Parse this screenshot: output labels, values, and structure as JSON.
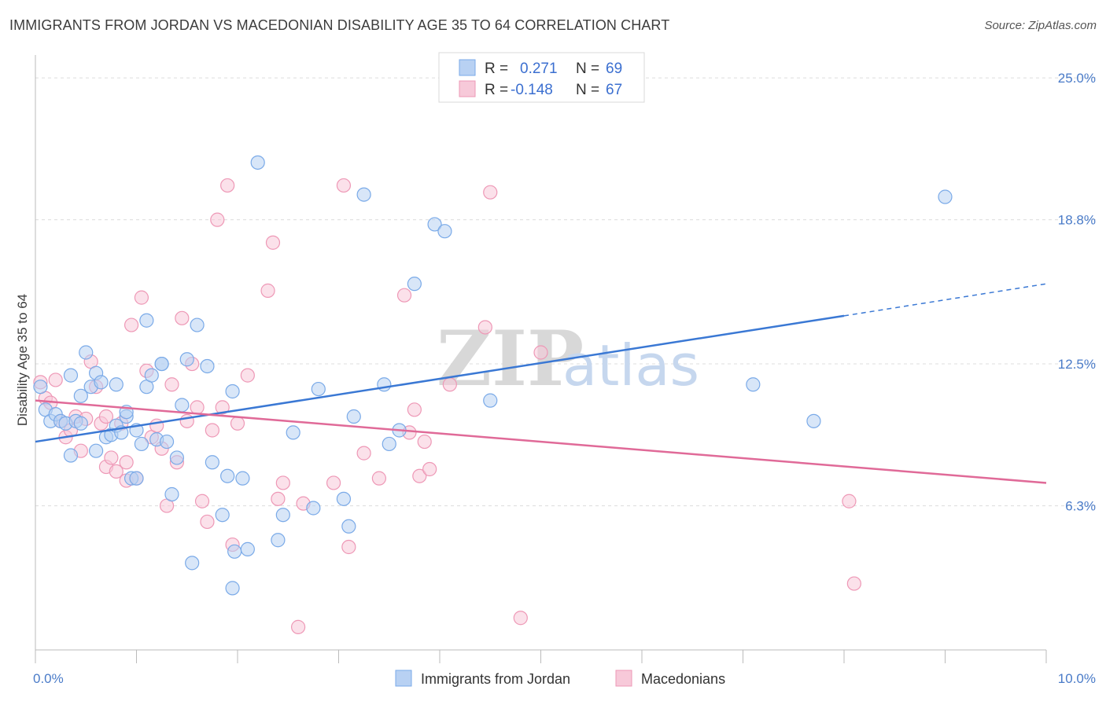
{
  "header": {
    "title": "IMMIGRANTS FROM JORDAN VS MACEDONIAN DISABILITY AGE 35 TO 64 CORRELATION CHART",
    "source": "Source: ZipAtlas.com"
  },
  "watermark": {
    "zip": "ZIP",
    "atlas": "atlas"
  },
  "chart_data": {
    "type": "scatter",
    "title": "IMMIGRANTS FROM JORDAN VS MACEDONIAN DISABILITY AGE 35 TO 64 CORRELATION CHART",
    "xlabel": "",
    "ylabel": "Disability Age 35 to 64",
    "xlim": [
      0,
      10
    ],
    "ylim": [
      0,
      26
    ],
    "x_tick_labels": [
      "0.0%",
      "10.0%"
    ],
    "y_ticks": [
      6.3,
      12.5,
      18.8,
      25.0
    ],
    "y_tick_labels": [
      "6.3%",
      "12.5%",
      "18.8%",
      "25.0%"
    ],
    "grid": "horizontal dashed",
    "legend_placement": "top-center",
    "legend": [
      {
        "r_label": "R =",
        "r_value": "0.271",
        "n_label": "N =",
        "n_value": "69"
      },
      {
        "r_label": "R =",
        "r_value": "-0.148",
        "n_label": "N =",
        "n_value": "67"
      }
    ],
    "series": [
      {
        "name": "Immigrants from Jordan",
        "color": "#7aaae8",
        "fill": "#b8d1f3",
        "trend": {
          "x": [
            0,
            8
          ],
          "y": [
            9.1,
            14.6
          ],
          "dashed_to": [
            10,
            16.0
          ]
        },
        "points": [
          [
            0.05,
            11.5
          ],
          [
            0.1,
            10.5
          ],
          [
            0.15,
            10.0
          ],
          [
            0.2,
            10.3
          ],
          [
            0.25,
            10.0
          ],
          [
            0.3,
            9.9
          ],
          [
            0.35,
            8.5
          ],
          [
            0.4,
            10.0
          ],
          [
            0.45,
            9.9
          ],
          [
            0.5,
            13.0
          ],
          [
            0.55,
            11.5
          ],
          [
            0.6,
            8.7
          ],
          [
            0.45,
            11.1
          ],
          [
            0.6,
            12.1
          ],
          [
            0.65,
            11.7
          ],
          [
            0.7,
            9.3
          ],
          [
            0.75,
            9.4
          ],
          [
            0.8,
            11.6
          ],
          [
            0.8,
            9.8
          ],
          [
            0.85,
            9.5
          ],
          [
            0.9,
            10.2
          ],
          [
            0.9,
            10.4
          ],
          [
            0.95,
            7.5
          ],
          [
            1.0,
            7.5
          ],
          [
            1.0,
            9.6
          ],
          [
            1.05,
            9.0
          ],
          [
            1.1,
            11.5
          ],
          [
            1.1,
            14.4
          ],
          [
            1.15,
            12.0
          ],
          [
            1.2,
            9.2
          ],
          [
            1.25,
            12.5
          ],
          [
            1.25,
            12.5
          ],
          [
            1.3,
            9.1
          ],
          [
            1.35,
            6.8
          ],
          [
            1.4,
            8.4
          ],
          [
            1.45,
            10.7
          ],
          [
            1.5,
            12.7
          ],
          [
            1.55,
            3.8
          ],
          [
            1.6,
            14.2
          ],
          [
            1.7,
            12.4
          ],
          [
            1.75,
            8.2
          ],
          [
            1.85,
            5.9
          ],
          [
            1.9,
            7.6
          ],
          [
            1.95,
            2.7
          ],
          [
            1.95,
            11.3
          ],
          [
            1.97,
            4.3
          ],
          [
            2.05,
            7.5
          ],
          [
            2.1,
            4.4
          ],
          [
            2.2,
            21.3
          ],
          [
            2.45,
            5.9
          ],
          [
            2.4,
            4.8
          ],
          [
            2.55,
            9.5
          ],
          [
            2.75,
            6.2
          ],
          [
            2.8,
            11.4
          ],
          [
            3.05,
            6.6
          ],
          [
            3.1,
            5.4
          ],
          [
            3.15,
            10.2
          ],
          [
            3.25,
            19.9
          ],
          [
            3.45,
            11.6
          ],
          [
            3.5,
            9.0
          ],
          [
            3.6,
            9.6
          ],
          [
            3.75,
            16.0
          ],
          [
            3.95,
            18.6
          ],
          [
            4.05,
            18.3
          ],
          [
            4.5,
            10.9
          ],
          [
            7.1,
            11.6
          ],
          [
            7.7,
            10.0
          ],
          [
            9.0,
            19.8
          ],
          [
            0.35,
            12.0
          ]
        ]
      },
      {
        "name": "Macedonians",
        "color": "#ee98b6",
        "fill": "#f7c9d9",
        "trend": {
          "x": [
            0,
            10
          ],
          "y": [
            10.9,
            7.3
          ]
        },
        "points": [
          [
            0.05,
            11.7
          ],
          [
            0.1,
            11.0
          ],
          [
            0.15,
            10.8
          ],
          [
            0.2,
            11.8
          ],
          [
            0.25,
            10.0
          ],
          [
            0.3,
            9.3
          ],
          [
            0.35,
            9.6
          ],
          [
            0.4,
            10.2
          ],
          [
            0.45,
            8.7
          ],
          [
            0.5,
            10.1
          ],
          [
            0.55,
            12.6
          ],
          [
            0.6,
            11.5
          ],
          [
            0.65,
            9.9
          ],
          [
            0.7,
            10.2
          ],
          [
            0.7,
            8.0
          ],
          [
            0.75,
            8.4
          ],
          [
            0.8,
            7.8
          ],
          [
            0.85,
            9.9
          ],
          [
            0.9,
            8.2
          ],
          [
            0.9,
            7.4
          ],
          [
            0.95,
            14.2
          ],
          [
            1.0,
            7.5
          ],
          [
            1.05,
            15.4
          ],
          [
            1.1,
            12.2
          ],
          [
            1.15,
            9.3
          ],
          [
            1.2,
            9.8
          ],
          [
            1.25,
            8.8
          ],
          [
            1.3,
            6.3
          ],
          [
            1.35,
            11.6
          ],
          [
            1.4,
            8.2
          ],
          [
            1.45,
            14.5
          ],
          [
            1.5,
            10.0
          ],
          [
            1.55,
            12.5
          ],
          [
            1.6,
            10.6
          ],
          [
            1.65,
            6.5
          ],
          [
            1.7,
            5.6
          ],
          [
            1.75,
            9.6
          ],
          [
            1.8,
            18.8
          ],
          [
            1.85,
            10.6
          ],
          [
            1.9,
            20.3
          ],
          [
            1.95,
            4.6
          ],
          [
            2.0,
            9.9
          ],
          [
            2.1,
            12.0
          ],
          [
            2.3,
            15.7
          ],
          [
            2.35,
            17.8
          ],
          [
            2.4,
            6.6
          ],
          [
            2.45,
            7.3
          ],
          [
            2.6,
            1.0
          ],
          [
            2.65,
            6.4
          ],
          [
            2.95,
            7.3
          ],
          [
            3.05,
            20.3
          ],
          [
            3.1,
            4.5
          ],
          [
            3.25,
            8.6
          ],
          [
            3.4,
            7.5
          ],
          [
            3.65,
            15.5
          ],
          [
            3.7,
            9.5
          ],
          [
            3.75,
            10.5
          ],
          [
            3.8,
            7.6
          ],
          [
            3.85,
            9.1
          ],
          [
            3.9,
            7.9
          ],
          [
            4.1,
            11.6
          ],
          [
            4.45,
            14.1
          ],
          [
            4.5,
            20.0
          ],
          [
            4.8,
            1.4
          ],
          [
            5.0,
            13.0
          ],
          [
            8.05,
            6.5
          ],
          [
            8.1,
            2.9
          ]
        ]
      }
    ]
  },
  "bottom_legend": [
    "Immigrants from Jordan",
    "Macedonians"
  ]
}
